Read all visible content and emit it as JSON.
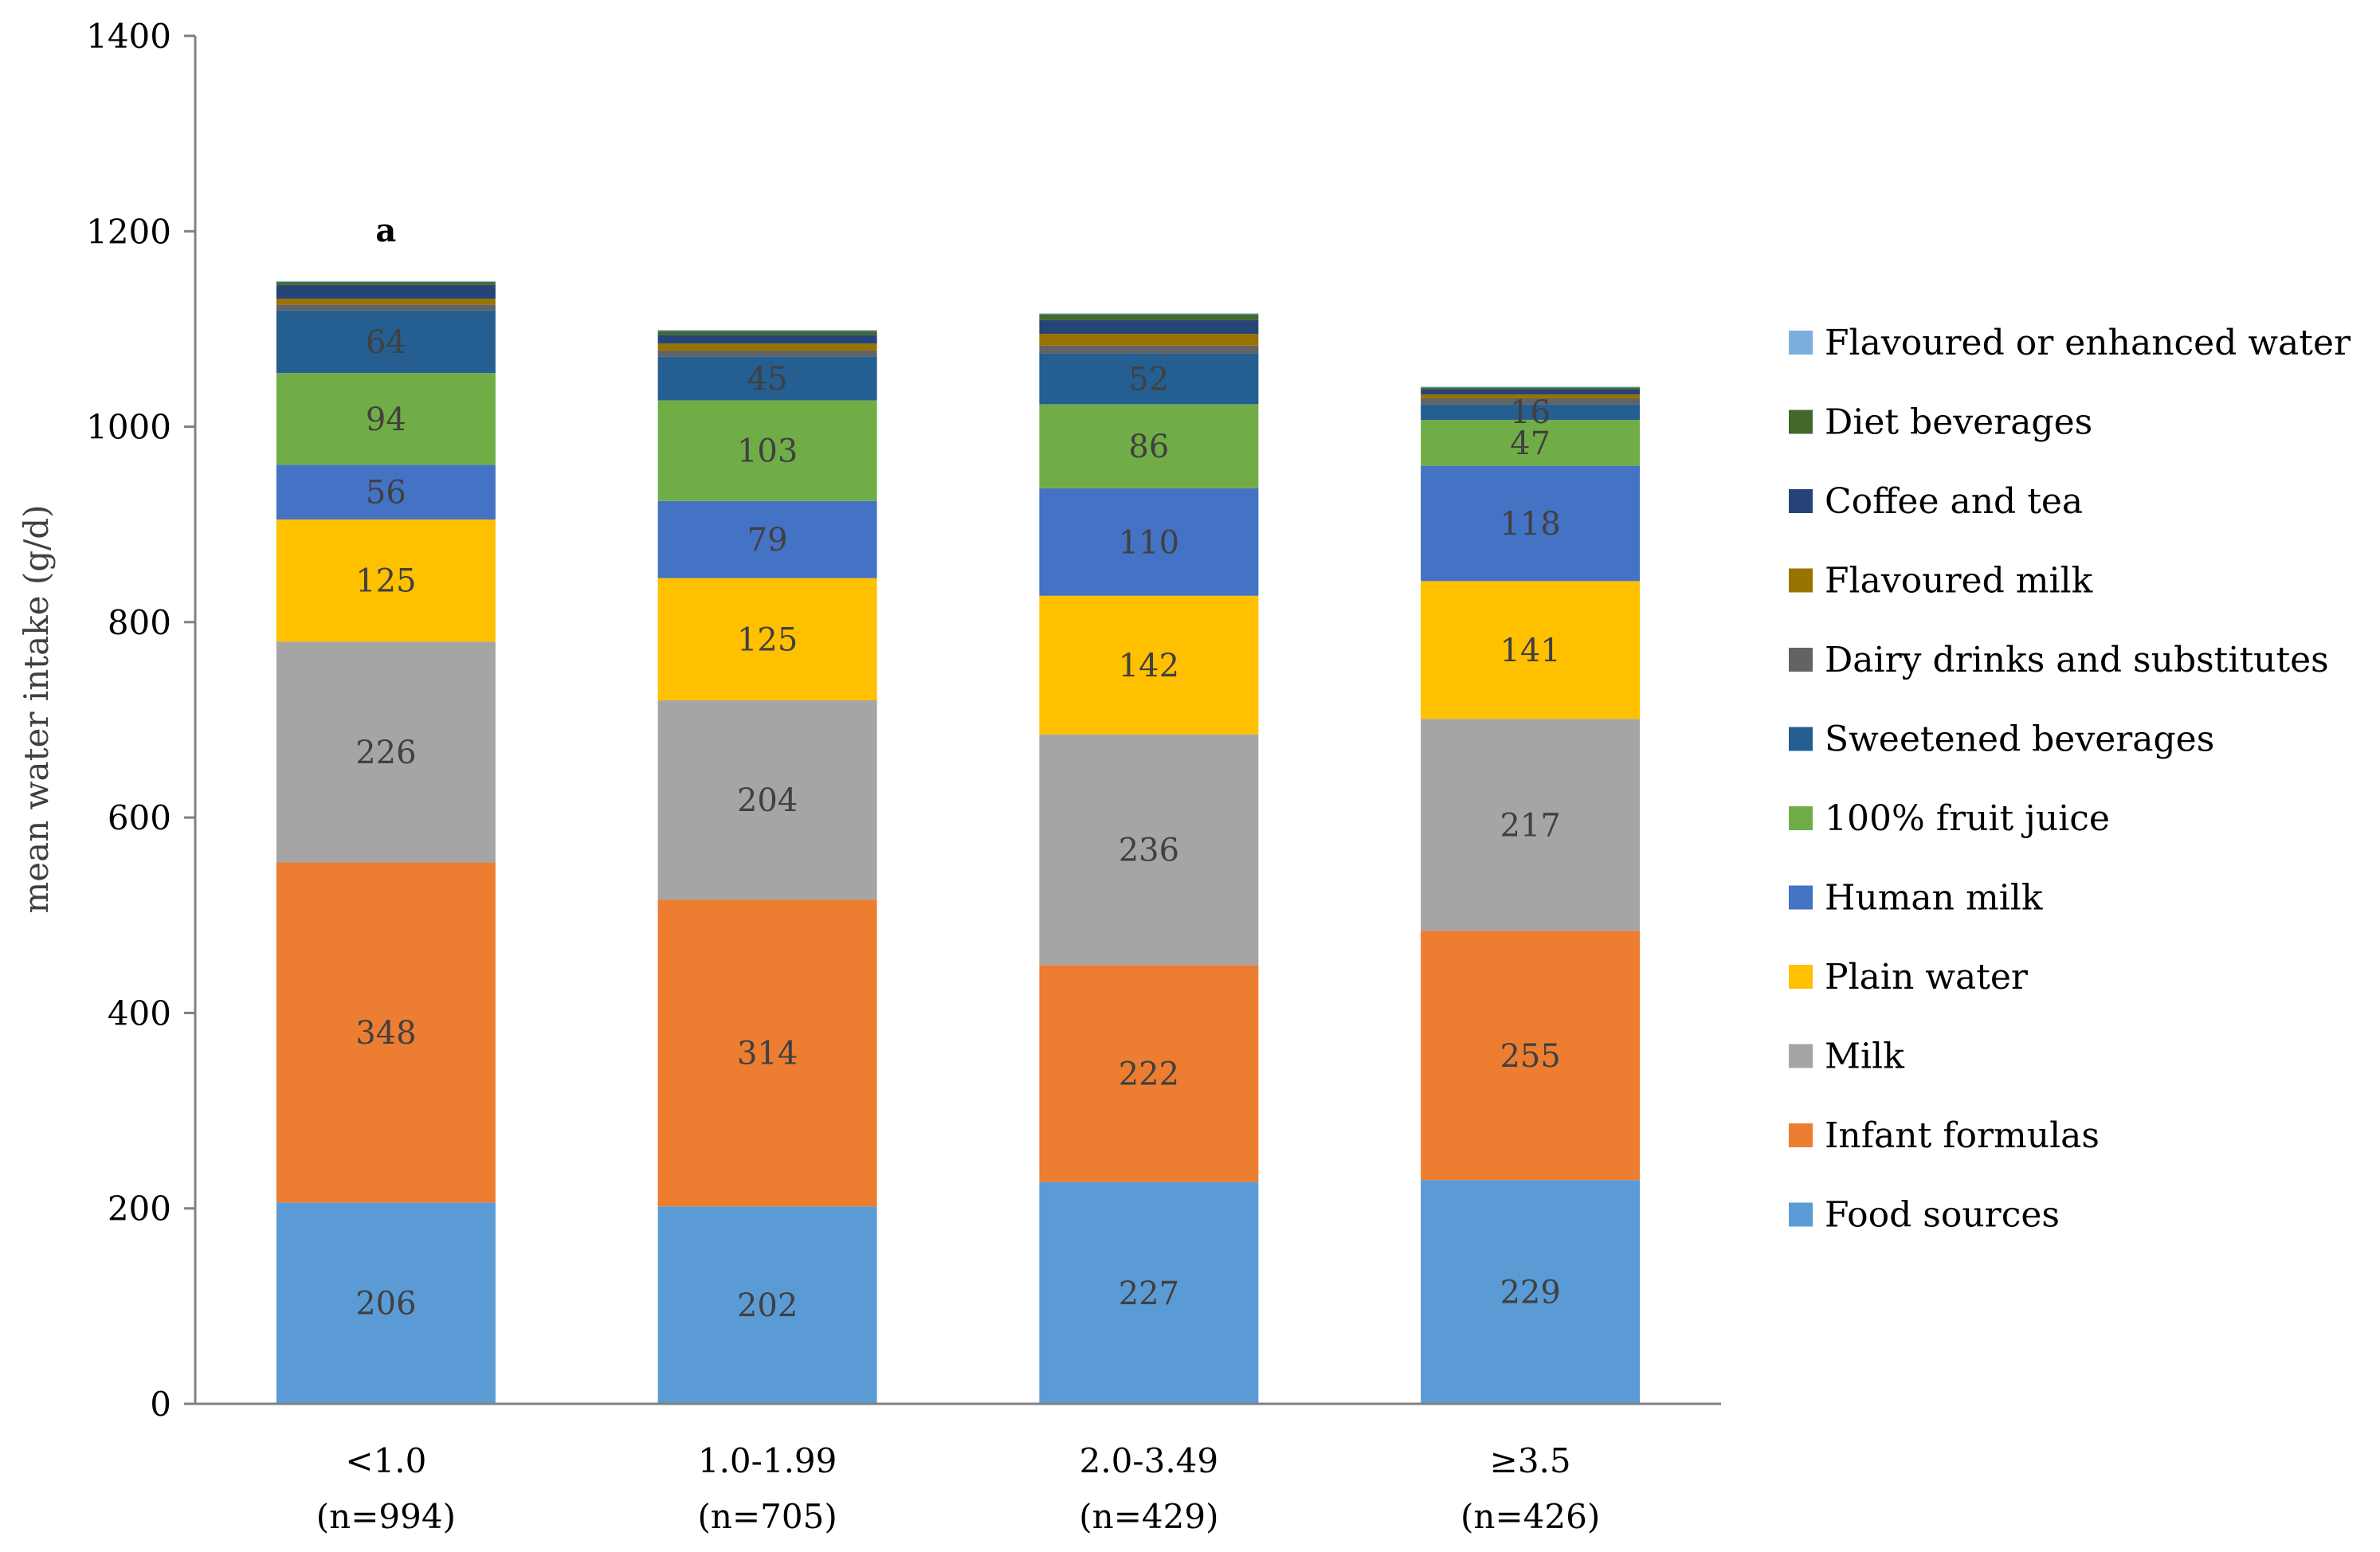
{
  "chart_data": {
    "type": "bar",
    "stacked": true,
    "title": "",
    "xlabel": "",
    "ylabel": "mean water intake (g/d)",
    "ylim": [
      0,
      1400
    ],
    "yticks": [
      0,
      200,
      400,
      600,
      800,
      1000,
      1200,
      1400
    ],
    "grid": false,
    "legend_position": "right",
    "categories": [
      {
        "line1": "<1.0",
        "line2": "(n=994)"
      },
      {
        "line1": "1.0-1.99",
        "line2": "(n=705)"
      },
      {
        "line1": "2.0-3.49",
        "line2": "(n=429)"
      },
      {
        "line1": "≥3.5",
        "line2": "(n=426)"
      }
    ],
    "annotations": [
      {
        "category_index": 0,
        "text": "a"
      }
    ],
    "series": [
      {
        "name": "Food sources",
        "color": "#5B9BD5",
        "values": [
          206,
          202,
          227,
          229
        ],
        "labels": [
          "206",
          "202",
          "227",
          "229"
        ]
      },
      {
        "name": "Infant formulas",
        "color": "#ED7D31",
        "values": [
          348,
          314,
          222,
          255
        ],
        "labels": [
          "348",
          "314",
          "222",
          "255"
        ]
      },
      {
        "name": "Milk",
        "color": "#A5A5A5",
        "values": [
          226,
          204,
          236,
          217
        ],
        "labels": [
          "226",
          "204",
          "236",
          "217"
        ]
      },
      {
        "name": "Plain water",
        "color": "#FFC000",
        "values": [
          125,
          125,
          142,
          141
        ],
        "labels": [
          "125",
          "125",
          "142",
          "141"
        ]
      },
      {
        "name": "Human milk",
        "color": "#4472C4",
        "values": [
          56,
          79,
          110,
          118
        ],
        "labels": [
          "56",
          "79",
          "110",
          "118"
        ]
      },
      {
        "name": "100% fruit juice",
        "color": "#70AD47",
        "values": [
          94,
          103,
          86,
          47
        ],
        "labels": [
          "94",
          "103",
          "86",
          "47"
        ]
      },
      {
        "name": "Sweetened beverages",
        "color": "#255E91",
        "values": [
          64,
          45,
          52,
          16
        ],
        "labels": [
          "64",
          "45",
          "52",
          "16"
        ]
      },
      {
        "name": "Dairy drinks and substitutes",
        "color": "#636363",
        "values": [
          6,
          6,
          8,
          6
        ],
        "labels": [
          "",
          "",
          "",
          ""
        ]
      },
      {
        "name": "Flavoured milk",
        "color": "#997300",
        "values": [
          6,
          7,
          12,
          4
        ],
        "labels": [
          "",
          "",
          "",
          ""
        ]
      },
      {
        "name": "Coffee and tea",
        "color": "#264478",
        "values": [
          14,
          9,
          14,
          5
        ],
        "labels": [
          "",
          "",
          "",
          ""
        ]
      },
      {
        "name": "Diet beverages",
        "color": "#43682B",
        "values": [
          3,
          4,
          6,
          2
        ],
        "labels": [
          "",
          "",
          "",
          ""
        ]
      },
      {
        "name": "Flavoured or enhanced water",
        "color": "#7CAFDD",
        "values": [
          1,
          1,
          1,
          1
        ],
        "labels": [
          "",
          "",
          "",
          ""
        ]
      }
    ]
  }
}
